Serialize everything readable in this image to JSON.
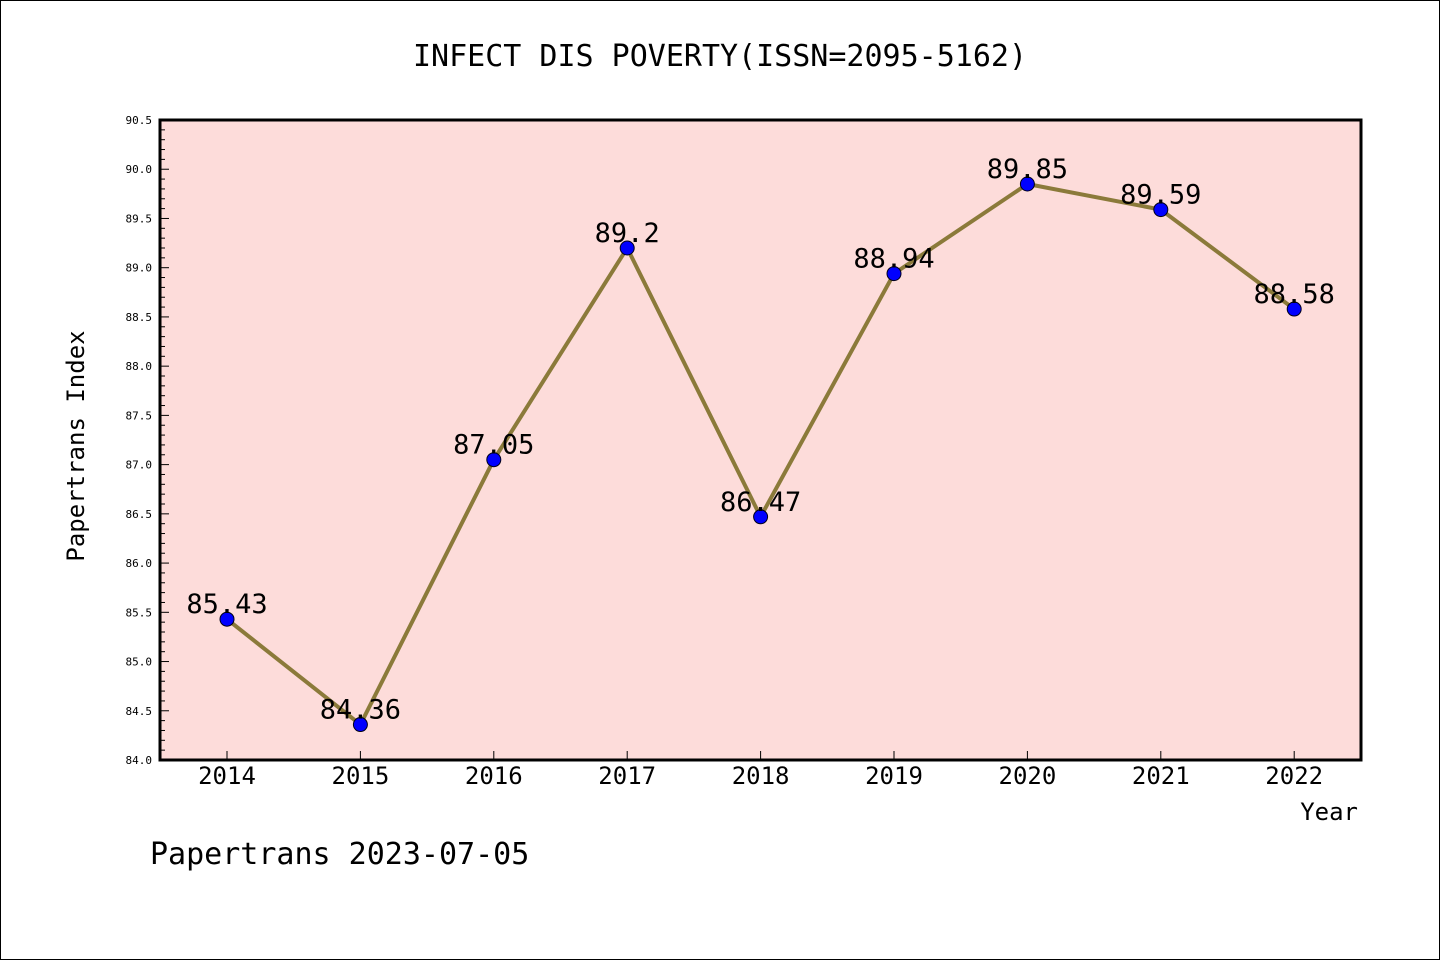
{
  "chart_data": {
    "type": "line",
    "title": "INFECT DIS POVERTY(ISSN=2095-5162)",
    "xlabel": "Year",
    "ylabel": "Papertrans Index",
    "x": [
      "2014",
      "2015",
      "2016",
      "2017",
      "2018",
      "2019",
      "2020",
      "2021",
      "2022"
    ],
    "series": [
      {
        "values": [
          85.43,
          84.36,
          87.05,
          89.2,
          86.47,
          88.94,
          89.85,
          89.59,
          88.58
        ]
      }
    ],
    "data_labels": [
      "85.43",
      "84.36",
      "87.05",
      "89.2",
      "86.47",
      "88.94",
      "89.85",
      "89.59",
      "88.58"
    ],
    "ylim": [
      84.0,
      90.5
    ],
    "y_ticks": [
      "84.0",
      "84.5",
      "85.0",
      "85.5",
      "86.0",
      "86.5",
      "87.0",
      "87.5",
      "88.0",
      "88.5",
      "89.0",
      "89.5",
      "90.0",
      "90.5"
    ],
    "grid": false,
    "legend": "none",
    "colors": {
      "plot_background": "#fddcda",
      "line": "#8b7a3a",
      "marker": "#0000ff"
    }
  },
  "footer": "Papertrans 2023-07-05"
}
